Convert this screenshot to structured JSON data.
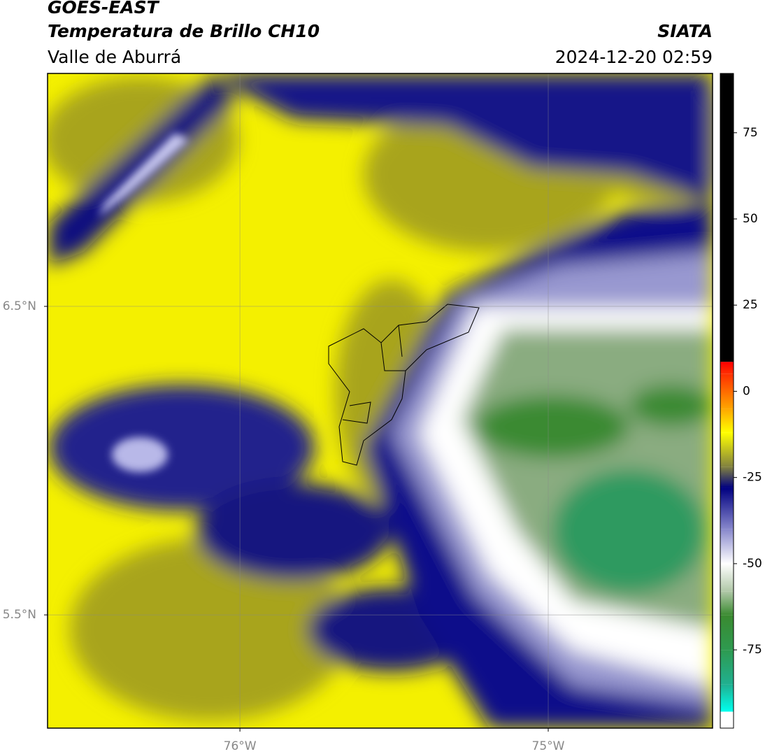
{
  "chart_data": {
    "type": "map",
    "title": "GOES-EAST",
    "subtitle": "Temperatura de Brillo CH10",
    "region": "Valle de Aburrá",
    "source": "SIATA",
    "datetime": "2024-12-20 02:59",
    "xlim": [
      -76.624,
      -74.467
    ],
    "ylim": [
      5.133,
      7.255
    ],
    "xticks": [
      {
        "value": -76,
        "label": "76°W"
      },
      {
        "value": -75,
        "label": "75°W"
      }
    ],
    "yticks": [
      {
        "value": 6.5,
        "label": "6.5°N"
      },
      {
        "value": 5.5,
        "label": "5.5°N"
      }
    ],
    "grid": true,
    "colorbar": {
      "lim": [
        -97.7,
        92.2
      ],
      "ticks": [
        75,
        50,
        25,
        0,
        -25,
        -50,
        -75
      ],
      "stops": [
        [
          -97.7,
          "#ffffff"
        ],
        [
          -93,
          "#ffffff"
        ],
        [
          -92.9,
          "#00ffee"
        ],
        [
          -85,
          "#20b090"
        ],
        [
          -75,
          "#2e9a50"
        ],
        [
          -65,
          "#3a8a30"
        ],
        [
          -58,
          "#b0c8a8"
        ],
        [
          -50,
          "#ffffff"
        ],
        [
          -40,
          "#8888cc"
        ],
        [
          -28,
          "#000080"
        ],
        [
          -22,
          "#808040"
        ],
        [
          -12,
          "#ffff00"
        ],
        [
          -5,
          "#ffa500"
        ],
        [
          5,
          "#ff3000"
        ],
        [
          8.5,
          "#ff0000"
        ],
        [
          8.6,
          "#000000"
        ],
        [
          92.2,
          "#000000"
        ]
      ]
    }
  }
}
